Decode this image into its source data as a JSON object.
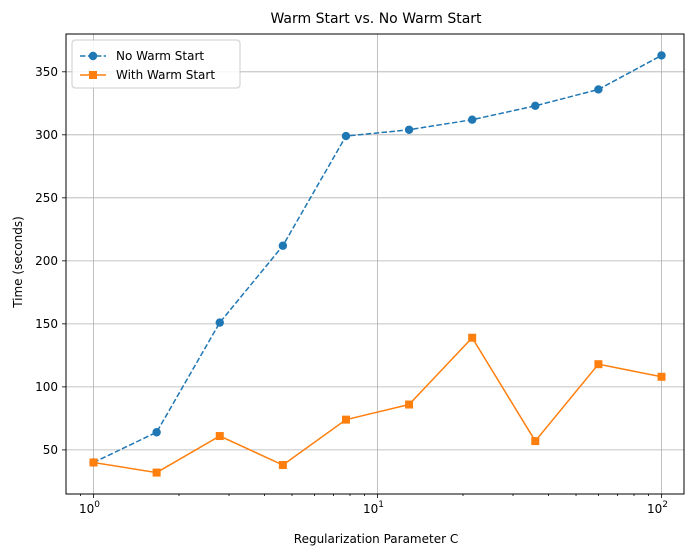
{
  "chart_data": {
    "type": "line",
    "title": "Warm Start vs. No Warm Start",
    "xlabel": "Regularization Parameter C",
    "ylabel": "Time (seconds)",
    "xscale": "log",
    "xlim": [
      0.8,
      120
    ],
    "ylim": [
      15,
      380
    ],
    "grid": true,
    "legend_position": "top-left",
    "x": [
      1,
      1.668,
      2.783,
      4.642,
      7.743,
      12.915,
      21.544,
      35.938,
      59.948,
      100
    ],
    "xticks": [
      {
        "value": 1,
        "base": "10",
        "exp": "0"
      },
      {
        "value": 10,
        "base": "10",
        "exp": "1"
      },
      {
        "value": 100,
        "base": "10",
        "exp": "2"
      }
    ],
    "yticks": [
      {
        "value": 50,
        "label": "50"
      },
      {
        "value": 100,
        "label": "100"
      },
      {
        "value": 150,
        "label": "150"
      },
      {
        "value": 200,
        "label": "200"
      },
      {
        "value": 250,
        "label": "250"
      },
      {
        "value": 300,
        "label": "300"
      },
      {
        "value": 350,
        "label": "350"
      }
    ],
    "series": [
      {
        "name": "No Warm Start",
        "color": "#1f77b4",
        "marker": "circle",
        "line_style": "dashed",
        "values": [
          40,
          64,
          151,
          212,
          299,
          304,
          312,
          323,
          336,
          363
        ]
      },
      {
        "name": "With Warm Start",
        "color": "#ff7f0e",
        "marker": "square",
        "line_style": "solid",
        "values": [
          40,
          32,
          61,
          38,
          74,
          86,
          139,
          57,
          118,
          108
        ]
      }
    ]
  }
}
